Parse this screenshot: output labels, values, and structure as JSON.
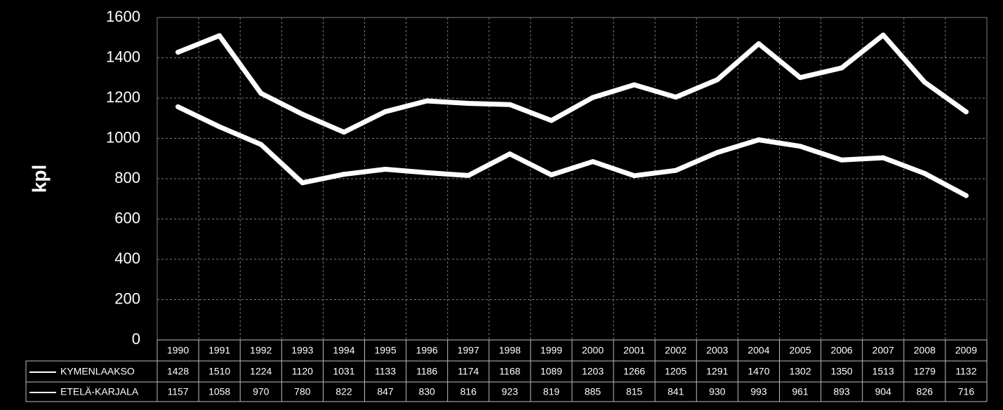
{
  "chart_data": {
    "type": "line",
    "ylabel": "kpl",
    "ylim": [
      0,
      1600
    ],
    "yticks": [
      0,
      200,
      400,
      600,
      800,
      1000,
      1200,
      1400,
      1600
    ],
    "grid": true,
    "legend": "data table below chart",
    "categories": [
      "1990",
      "1991",
      "1992",
      "1993",
      "1994",
      "1995",
      "1996",
      "1997",
      "1998",
      "1999",
      "2000",
      "2001",
      "2002",
      "2003",
      "2004",
      "2005",
      "2006",
      "2007",
      "2008",
      "2009"
    ],
    "series": [
      {
        "name": "KYMENLAAKSO",
        "color": "#ffffff",
        "values": [
          1428,
          1510,
          1224,
          1120,
          1031,
          1133,
          1186,
          1174,
          1168,
          1089,
          1203,
          1266,
          1205,
          1291,
          1470,
          1302,
          1350,
          1513,
          1279,
          1132
        ]
      },
      {
        "name": "ETELÄ-KARJALA",
        "color": "#ffffff",
        "values": [
          1157,
          1058,
          970,
          780,
          822,
          847,
          830,
          816,
          923,
          819,
          885,
          815,
          841,
          930,
          993,
          961,
          893,
          904,
          826,
          716
        ]
      }
    ]
  },
  "colors": {
    "background": "#000000",
    "foreground": "#ffffff"
  }
}
